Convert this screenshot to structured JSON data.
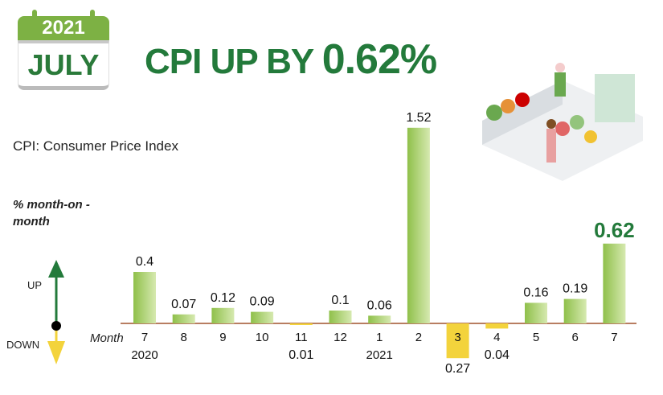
{
  "calendar": {
    "year": "2021",
    "month": "JULY"
  },
  "header": {
    "title_prefix": "CPI UP BY ",
    "title_value": "0.62%"
  },
  "subtitle": "CPI: Consumer Price Index",
  "legend": {
    "unit": "% month-on -month",
    "up": "UP",
    "down": "DOWN"
  },
  "colors": {
    "green": "#237a3b",
    "bar": "#9ccb5a",
    "neg": "#f3d33c",
    "axis": "#a0522d"
  },
  "chart_data": {
    "type": "bar",
    "title": "CPI UP BY 0.62%",
    "xlabel": "Month",
    "ylabel": "% month-on -month",
    "categories": [
      "7",
      "8",
      "9",
      "10",
      "11",
      "12",
      "1",
      "2",
      "3",
      "4",
      "5",
      "6",
      "7"
    ],
    "year_labels": {
      "0": "2020",
      "6": "2021"
    },
    "values": [
      0.4,
      0.07,
      0.12,
      0.09,
      -0.01,
      0.1,
      0.06,
      1.52,
      -0.27,
      -0.04,
      0.16,
      0.19,
      0.62
    ],
    "labels": [
      "0.4",
      "0.07",
      "0.12",
      "0.09",
      "0.01",
      "0.1",
      "0.06",
      "1.52",
      "0.27",
      "0.04",
      "0.16",
      "0.19",
      "0.62"
    ],
    "highlight_index": 12
  }
}
